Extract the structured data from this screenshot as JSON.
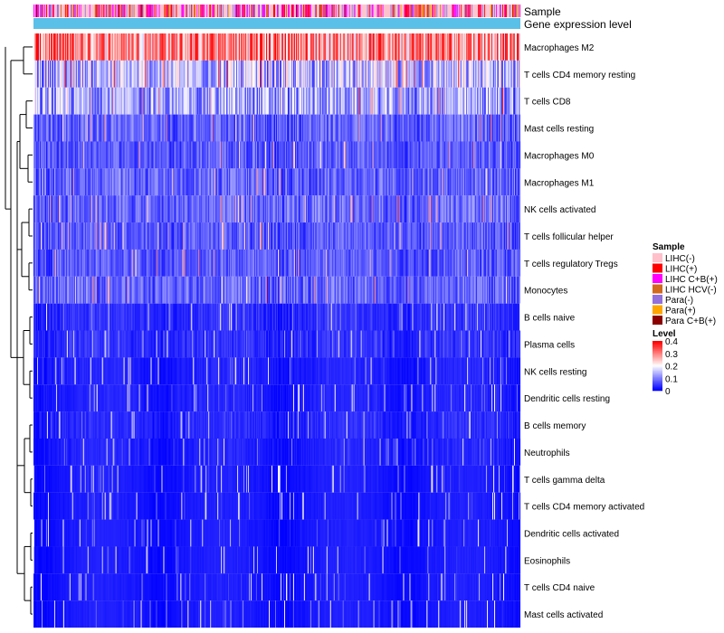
{
  "chart_data": {
    "type": "heatmap",
    "title": "",
    "annotation_tracks": [
      "Sample",
      "Gene expression level"
    ],
    "rows": [
      "Macrophages M2",
      "T cells CD4 memory resting",
      "T cells CD8",
      "Mast cells resting",
      "Macrophages M0",
      "Macrophages M1",
      "NK cells activated",
      "T cells follicular helper",
      "T cells regulatory  Tregs",
      "Monocytes",
      "B cells naive",
      "Plasma cells",
      "NK cells resting",
      "Dendritic cells resting",
      "B cells memory",
      "Neutrophils",
      "T cells gamma delta",
      "T cells CD4 memory activated",
      "Dendritic cells activated",
      "Eosinophils",
      "T cells CD4 naive",
      "Mast cells activated"
    ],
    "row_mean_level": [
      0.3,
      0.14,
      0.12,
      0.07,
      0.06,
      0.07,
      0.07,
      0.06,
      0.06,
      0.07,
      0.04,
      0.04,
      0.02,
      0.02,
      0.03,
      0.02,
      0.01,
      0.01,
      0.01,
      0.01,
      0.01,
      0.01
    ],
    "n_columns": 540,
    "sample_legend": {
      "title": "Sample",
      "items": [
        {
          "label": "LIHC(-)",
          "color": "#FFC0CB"
        },
        {
          "label": "LIHC(+)",
          "color": "#FF0000"
        },
        {
          "label": "LIHC C+B(+)",
          "color": "#FF00FF"
        },
        {
          "label": "LIHC HCV(-)",
          "color": "#D2691E"
        },
        {
          "label": "Para(-)",
          "color": "#9370DB"
        },
        {
          "label": "Para(+)",
          "color": "#FFA500"
        },
        {
          "label": "Para C+B(+)",
          "color": "#8B0000"
        }
      ]
    },
    "level_legend": {
      "title": "Level",
      "ticks": [
        "0.4",
        "0.3",
        "0.2",
        "0.1",
        "0"
      ],
      "tick_values": [
        0.4,
        0.3,
        0.2,
        0.1,
        0
      ],
      "range": [
        0,
        0.4
      ],
      "colors": [
        "#0000FF",
        "#FFFFFF",
        "#FF0000"
      ]
    },
    "gene_expression_color": "#5BC0E8"
  }
}
